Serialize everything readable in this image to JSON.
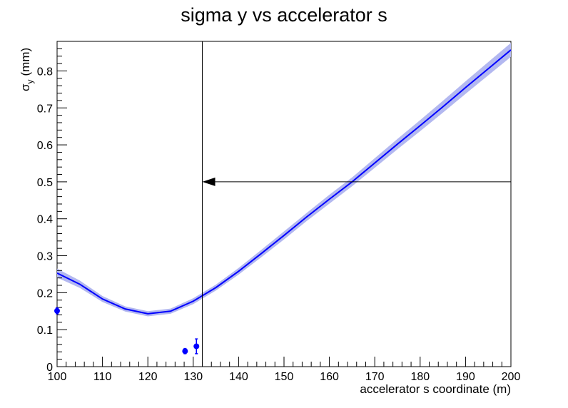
{
  "chart_data": {
    "type": "line",
    "title": "sigma y vs accelerator s",
    "xlabel": "accelerator s coordinate (m)",
    "ylabel": "σy (mm)",
    "ylabel_parts": {
      "base": "σ",
      "sub": "y",
      "rest": "(mm)"
    },
    "xlim": [
      100,
      200
    ],
    "ylim": [
      0,
      0.88
    ],
    "xticks": [
      100,
      110,
      120,
      130,
      140,
      150,
      160,
      170,
      180,
      190,
      200
    ],
    "xtick_labels": [
      "100",
      "110",
      "120",
      "130",
      "140",
      "150",
      "160",
      "170",
      "180",
      "190",
      "200"
    ],
    "yticks": [
      0,
      0.1,
      0.2,
      0.3,
      0.4,
      0.5,
      0.6,
      0.7,
      0.8
    ],
    "ytick_labels": [
      "0",
      "0.1",
      "0.2",
      "0.3",
      "0.4",
      "0.5",
      "0.6",
      "0.7",
      "0.8"
    ],
    "grid": false,
    "legend": "none",
    "colors": {
      "fit_line": "#0000ff",
      "band": "#b3b8f0",
      "points": "#0000ff",
      "annotation": "#000000"
    },
    "series": [
      {
        "kind": "fit",
        "x": [
          100,
          105,
          110,
          115,
          120,
          125,
          130,
          135,
          140,
          145,
          150,
          155,
          160,
          165,
          170,
          175,
          180,
          185,
          190,
          195,
          200
        ],
        "y": [
          0.253,
          0.223,
          0.183,
          0.156,
          0.143,
          0.15,
          0.177,
          0.214,
          0.258,
          0.306,
          0.355,
          0.405,
          0.453,
          0.5,
          0.551,
          0.602,
          0.652,
          0.703,
          0.755,
          0.806,
          0.857
        ],
        "band_halfwidth": [
          0.012,
          0.01,
          0.008,
          0.007,
          0.007,
          0.007,
          0.008,
          0.008,
          0.009,
          0.01,
          0.011,
          0.011,
          0.012,
          0.012,
          0.013,
          0.014,
          0.015,
          0.016,
          0.017,
          0.018,
          0.019
        ]
      },
      {
        "kind": "measured",
        "points": [
          {
            "x": 100.0,
            "y": 0.151,
            "yerr": 0.008
          },
          {
            "x": 128.2,
            "y": 0.042,
            "yerr": 0.007
          },
          {
            "x": 130.7,
            "y": 0.055,
            "yerr": 0.02
          }
        ]
      }
    ],
    "annotations": [
      {
        "type": "vline",
        "x": 132
      },
      {
        "type": "arrow",
        "from": [
          200,
          0.5
        ],
        "to": [
          132,
          0.5
        ]
      }
    ]
  }
}
